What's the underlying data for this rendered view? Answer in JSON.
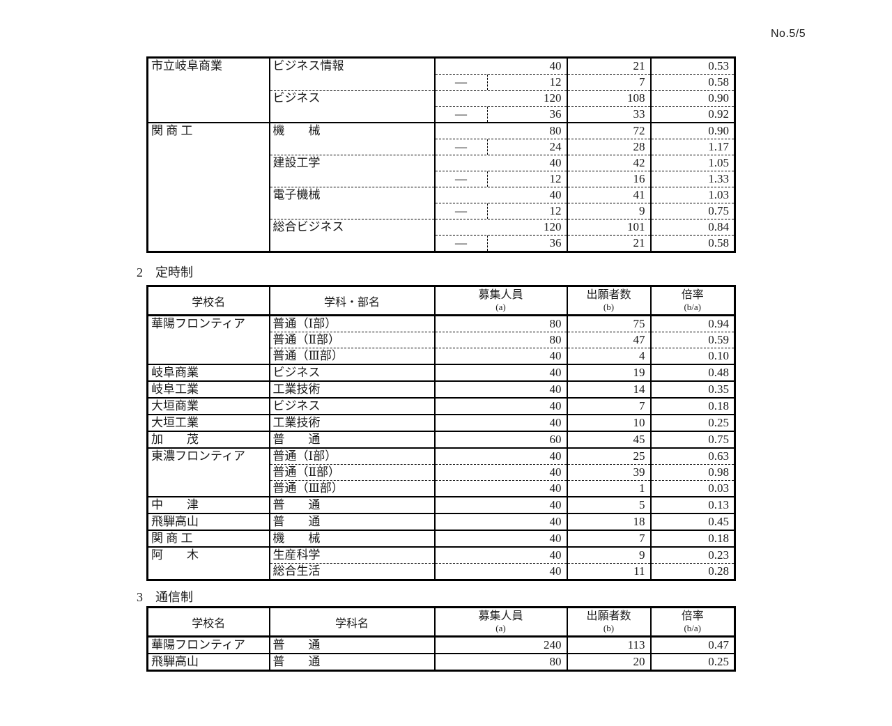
{
  "page_number": "No.5/5",
  "colors": {
    "ink": "#1a1a1a",
    "paper": "#ffffff",
    "line": "#000000"
  },
  "table1": {
    "schools": [
      {
        "name": "市立岐阜商業",
        "departments": [
          {
            "name": "ビジネス情報",
            "main": {
              "cap": "40",
              "app": "21",
              "ratio": "0.53"
            },
            "sub": {
              "dash": "—",
              "cap": "12",
              "app": "7",
              "ratio": "0.58"
            }
          },
          {
            "name": "ビジネス",
            "main": {
              "cap": "120",
              "app": "108",
              "ratio": "0.90"
            },
            "sub": {
              "dash": "—",
              "cap": "36",
              "app": "33",
              "ratio": "0.92"
            }
          }
        ]
      },
      {
        "name": "関 商 工",
        "departments": [
          {
            "name": "機　　械",
            "main": {
              "cap": "80",
              "app": "72",
              "ratio": "0.90"
            },
            "sub": {
              "dash": "—",
              "cap": "24",
              "app": "28",
              "ratio": "1.17"
            }
          },
          {
            "name": "建設工学",
            "main": {
              "cap": "40",
              "app": "42",
              "ratio": "1.05"
            },
            "sub": {
              "dash": "—",
              "cap": "12",
              "app": "16",
              "ratio": "1.33"
            }
          },
          {
            "name": "電子機械",
            "main": {
              "cap": "40",
              "app": "41",
              "ratio": "1.03"
            },
            "sub": {
              "dash": "—",
              "cap": "12",
              "app": "9",
              "ratio": "0.75"
            }
          },
          {
            "name": "総合ビジネス",
            "main": {
              "cap": "120",
              "app": "101",
              "ratio": "0.84"
            },
            "sub": {
              "dash": "—",
              "cap": "36",
              "app": "21",
              "ratio": "0.58"
            }
          }
        ]
      }
    ]
  },
  "section2": {
    "heading": "2　定時制",
    "header": {
      "school": "学校名",
      "dept": "学科・部名",
      "cap": "募集人員",
      "cap_sub": "(a)",
      "app": "出願者数",
      "app_sub": "(b)",
      "ratio": "倍率",
      "ratio_sub": "(b/a)"
    },
    "schools": [
      {
        "name": "華陽フロンティア",
        "rows": [
          {
            "dept": "普通（Ⅰ部）",
            "cap": "80",
            "app": "75",
            "ratio": "0.94"
          },
          {
            "dept": "普通（Ⅱ部）",
            "cap": "80",
            "app": "47",
            "ratio": "0.59"
          },
          {
            "dept": "普通（Ⅲ部）",
            "cap": "40",
            "app": "4",
            "ratio": "0.10"
          }
        ]
      },
      {
        "name": "岐阜商業",
        "rows": [
          {
            "dept": "ビジネス",
            "cap": "40",
            "app": "19",
            "ratio": "0.48"
          }
        ]
      },
      {
        "name": "岐阜工業",
        "rows": [
          {
            "dept": "工業技術",
            "cap": "40",
            "app": "14",
            "ratio": "0.35"
          }
        ]
      },
      {
        "name": "大垣商業",
        "rows": [
          {
            "dept": "ビジネス",
            "cap": "40",
            "app": "7",
            "ratio": "0.18"
          }
        ]
      },
      {
        "name": "大垣工業",
        "rows": [
          {
            "dept": "工業技術",
            "cap": "40",
            "app": "10",
            "ratio": "0.25"
          }
        ]
      },
      {
        "name": "加　　茂",
        "rows": [
          {
            "dept": "普　　通",
            "cap": "60",
            "app": "45",
            "ratio": "0.75"
          }
        ]
      },
      {
        "name": "東濃フロンティア",
        "rows": [
          {
            "dept": "普通（Ⅰ部）",
            "cap": "40",
            "app": "25",
            "ratio": "0.63"
          },
          {
            "dept": "普通（Ⅱ部）",
            "cap": "40",
            "app": "39",
            "ratio": "0.98"
          },
          {
            "dept": "普通（Ⅲ部）",
            "cap": "40",
            "app": "1",
            "ratio": "0.03"
          }
        ]
      },
      {
        "name": "中　　津",
        "rows": [
          {
            "dept": "普　　通",
            "cap": "40",
            "app": "5",
            "ratio": "0.13"
          }
        ]
      },
      {
        "name": "飛騨高山",
        "rows": [
          {
            "dept": "普　　通",
            "cap": "40",
            "app": "18",
            "ratio": "0.45"
          }
        ]
      },
      {
        "name": "関 商 工",
        "rows": [
          {
            "dept": "機　　械",
            "cap": "40",
            "app": "7",
            "ratio": "0.18"
          }
        ]
      },
      {
        "name": "阿　　木",
        "rows": [
          {
            "dept": "生産科学",
            "cap": "40",
            "app": "9",
            "ratio": "0.23"
          },
          {
            "dept": "総合生活",
            "cap": "40",
            "app": "11",
            "ratio": "0.28"
          }
        ]
      }
    ]
  },
  "section3": {
    "heading": "3　通信制",
    "header": {
      "school": "学校名",
      "dept": "学科名",
      "cap": "募集人員",
      "cap_sub": "(a)",
      "app": "出願者数",
      "app_sub": "(b)",
      "ratio": "倍率",
      "ratio_sub": "(b/a)"
    },
    "schools": [
      {
        "name": "華陽フロンティア",
        "rows": [
          {
            "dept": "普　　通",
            "cap": "240",
            "app": "113",
            "ratio": "0.47"
          }
        ]
      },
      {
        "name": "飛騨高山",
        "rows": [
          {
            "dept": "普　　通",
            "cap": "80",
            "app": "20",
            "ratio": "0.25"
          }
        ]
      }
    ]
  }
}
